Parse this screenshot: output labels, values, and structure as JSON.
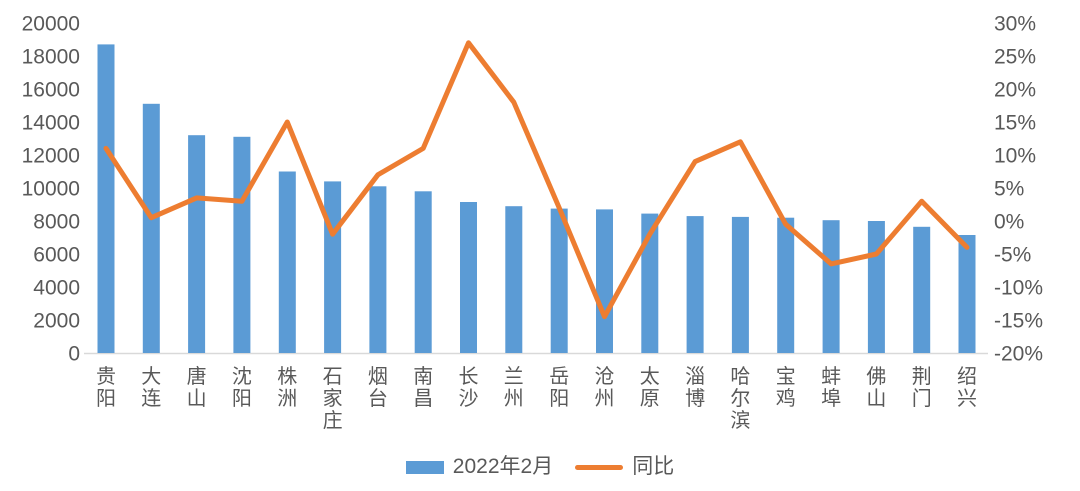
{
  "chart_data": {
    "type": "combo-bar-line",
    "categories": [
      "贵阳",
      "大连",
      "唐山",
      "沈阳",
      "株洲",
      "石家庄",
      "烟台",
      "南昌",
      "长沙",
      "兰州",
      "岳阳",
      "沧州",
      "太原",
      "淄博",
      "哈尔滨",
      "宝鸡",
      "蚌埠",
      "佛山",
      "荆门",
      "绍兴"
    ],
    "series": [
      {
        "name": "2022年2月",
        "type": "bar",
        "axis": "left",
        "color": "#5B9BD5",
        "values": [
          18700,
          15100,
          13200,
          13100,
          11000,
          10400,
          10100,
          9800,
          9150,
          8900,
          8750,
          8700,
          8450,
          8300,
          8250,
          8200,
          8050,
          8000,
          7650,
          7150
        ]
      },
      {
        "name": "同比",
        "type": "line",
        "axis": "right",
        "color": "#ED7D31",
        "unit": "%",
        "values": [
          11,
          0.5,
          3.5,
          3,
          15,
          -2,
          7,
          11,
          27,
          18,
          2,
          -14.5,
          -2,
          9,
          12,
          -0.5,
          -6.5,
          -5,
          3,
          -4
        ]
      }
    ],
    "left_axis": {
      "min": 0,
      "max": 20000,
      "step": 2000,
      "ticks": [
        "0",
        "2000",
        "4000",
        "6000",
        "8000",
        "10000",
        "12000",
        "14000",
        "16000",
        "18000",
        "20000"
      ]
    },
    "right_axis": {
      "min": -20,
      "max": 30,
      "step": 5,
      "ticks": [
        "-20%",
        "-15%",
        "-10%",
        "-5%",
        "0%",
        "5%",
        "10%",
        "15%",
        "20%",
        "25%",
        "30%"
      ]
    },
    "legend": {
      "position": "bottom",
      "items": [
        "2022年2月",
        "同比"
      ]
    },
    "grid": "off",
    "title": ""
  },
  "colors": {
    "bar": "#5B9BD5",
    "line": "#ED7D31",
    "tick_text": "#595959",
    "axis_line": "#D9D9D9",
    "background": "#FFFFFF"
  }
}
